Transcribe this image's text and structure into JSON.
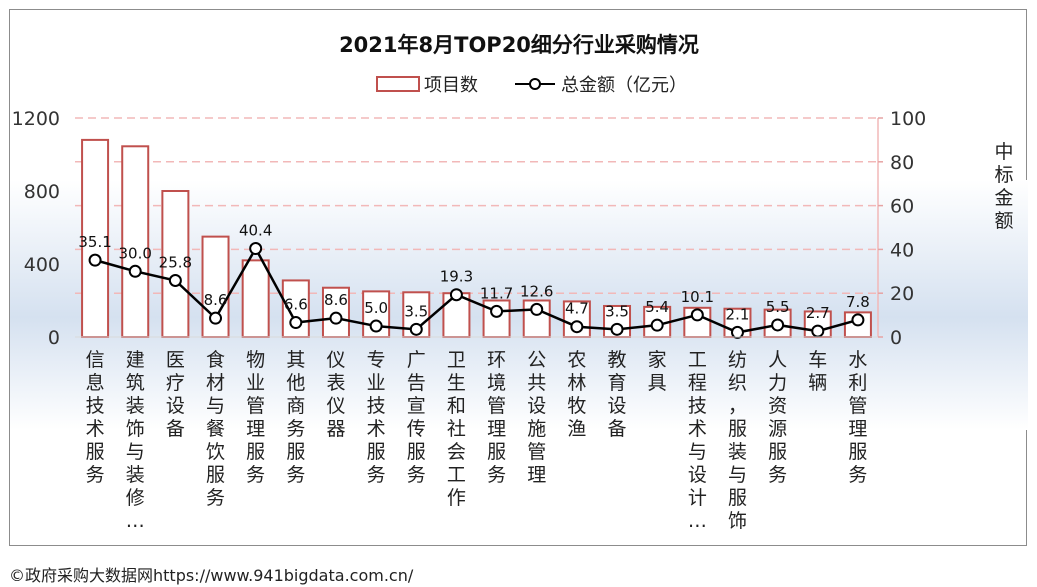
{
  "source": "©政府采购大数据网https://www.941bigdata.com.cn/",
  "colors": {
    "bar_stroke": "#c0504d",
    "line": "#000000",
    "marker_fill": "#ffffff",
    "grid": "#f2b8b8",
    "band": "#d5e1f0"
  },
  "chart_data": {
    "type": "bar",
    "title": "2021年8月TOP20细分行业采购情况",
    "xlabel": "",
    "ylabel": "",
    "y2label": "中标金额",
    "legend_placement": "top-center",
    "grid": true,
    "ylim": [
      0,
      1200
    ],
    "y_ticks": [
      0,
      400,
      800,
      1200
    ],
    "y2lim": [
      0,
      100
    ],
    "y2_ticks": [
      0,
      20,
      40,
      60,
      80,
      100
    ],
    "categories": [
      "信息技术服务",
      "建筑装饰与装修…",
      "医疗设备",
      "食材与餐饮服务",
      "物业管理服务",
      "其他商务服务",
      "仪表仪器",
      "专业技术服务",
      "广告宣传服务",
      "卫生和社会工作",
      "环境管理服务",
      "公共设施管理",
      "农林牧渔",
      "教育设备",
      "家具",
      "工程技术与设计…",
      "纺织，服装与服饰",
      "人力资源服务",
      "车辆",
      "水利管理服务"
    ],
    "series": [
      {
        "name": "项目数",
        "type": "bar",
        "axis": "left",
        "values": [
          1080,
          1045,
          800,
          550,
          420,
          310,
          270,
          250,
          245,
          240,
          200,
          200,
          195,
          170,
          165,
          160,
          155,
          150,
          140,
          135
        ]
      },
      {
        "name": "总金额（亿元）",
        "type": "line",
        "axis": "right",
        "values": [
          35.1,
          30.0,
          25.8,
          8.6,
          40.4,
          6.6,
          8.6,
          5.0,
          3.5,
          19.3,
          11.7,
          12.6,
          4.7,
          3.5,
          5.4,
          10.1,
          2.1,
          5.5,
          2.7,
          7.8
        ],
        "labels": [
          "35.1",
          "30.0",
          "25.8",
          "8.6",
          "40.4",
          "6.6",
          "8.6",
          "5.0",
          "3.5",
          "19.3",
          "11.7",
          "12.6",
          "4.7",
          "3.5",
          "5.4",
          "10.1",
          "2.1",
          "5.5",
          "2.7",
          "7.8"
        ]
      }
    ]
  }
}
